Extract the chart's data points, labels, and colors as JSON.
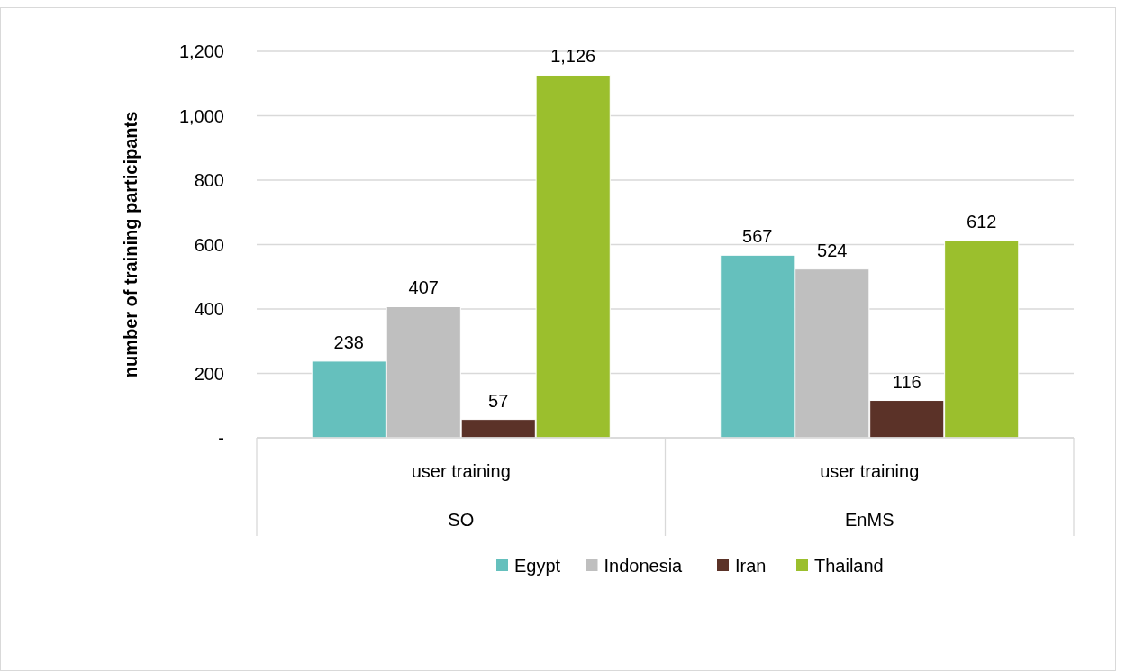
{
  "chart_data": {
    "type": "bar",
    "ylabel": "number of training participants",
    "categories": [
      "user training",
      "user training"
    ],
    "annotations": [
      "SO",
      "EnMS"
    ],
    "series": [
      {
        "name": "Egypt",
        "color": "#65c0bd",
        "values": [
          238,
          567
        ],
        "value_labels": [
          "238",
          "567"
        ]
      },
      {
        "name": "Indonesia",
        "color": "#bfbfbf",
        "values": [
          407,
          524
        ],
        "value_labels": [
          "407",
          "524"
        ]
      },
      {
        "name": "Iran",
        "color": "#5b3228",
        "values": [
          57,
          116
        ],
        "value_labels": [
          "57",
          "116"
        ]
      },
      {
        "name": "Thailand",
        "color": "#9bbf2d",
        "values": [
          1126,
          612
        ],
        "value_labels": [
          "1,126",
          "612"
        ]
      }
    ],
    "ylim": [
      0,
      1200
    ],
    "yticks": [
      {
        "value": 0,
        "label": "-"
      },
      {
        "value": 200,
        "label": "200"
      },
      {
        "value": 400,
        "label": "400"
      },
      {
        "value": 600,
        "label": "600"
      },
      {
        "value": 800,
        "label": "800"
      },
      {
        "value": 1000,
        "label": "1,000"
      },
      {
        "value": 1200,
        "label": "1,200"
      }
    ],
    "grid": "y",
    "legend": "bottom"
  }
}
